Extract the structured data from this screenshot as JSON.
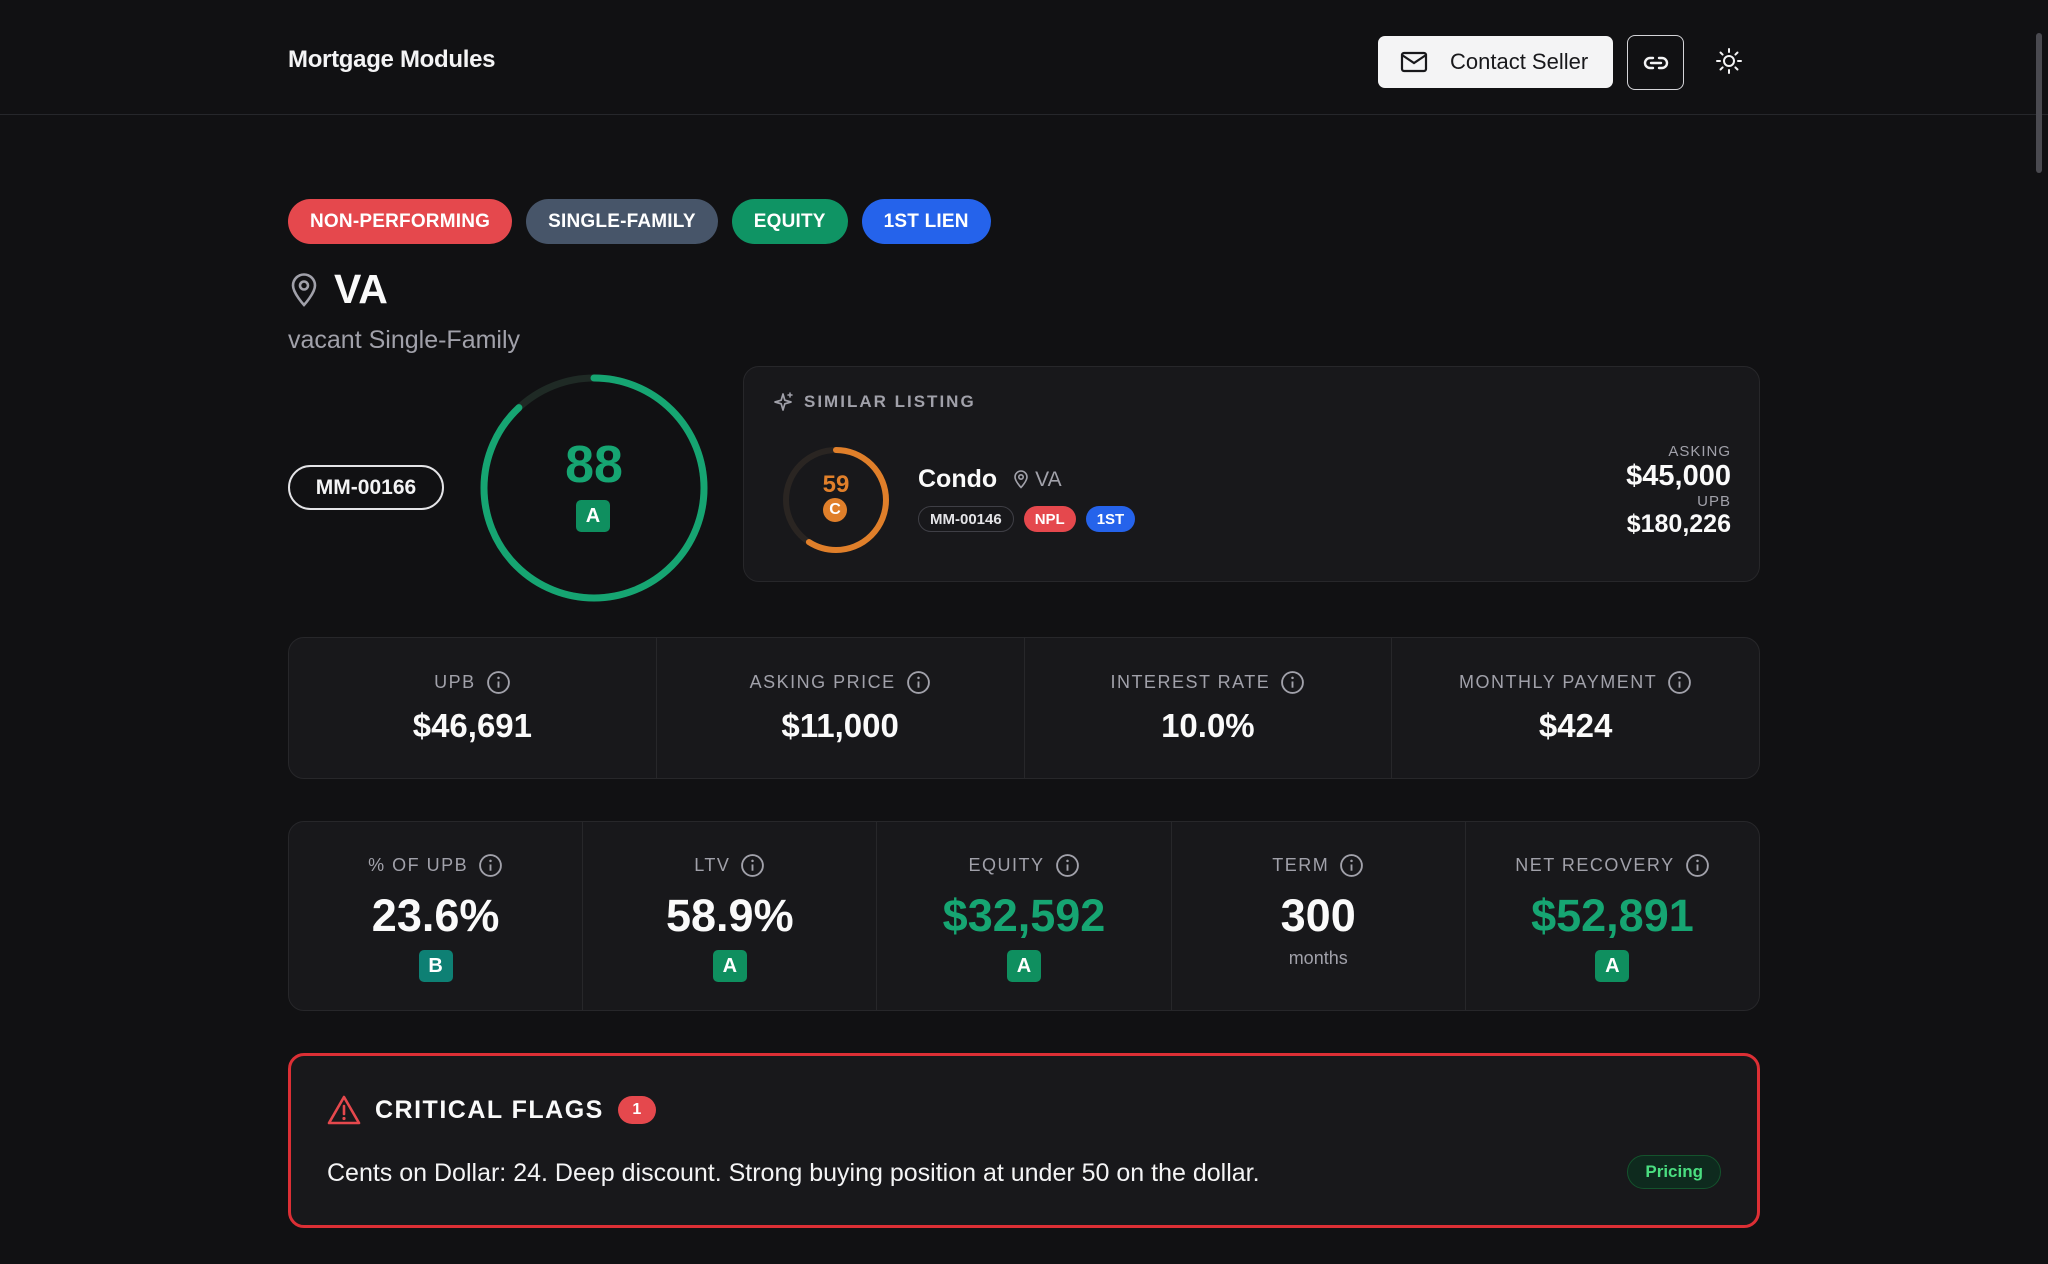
{
  "app": {
    "brand": "Mortgage Modules"
  },
  "header": {
    "contact_label": "Contact Seller"
  },
  "tags": [
    "NON-PERFORMING",
    "SINGLE-FAMILY",
    "EQUITY",
    "1ST LIEN"
  ],
  "listing": {
    "state": "VA",
    "subtitle": "vacant Single-Family",
    "id": "MM-00166",
    "score": "88",
    "score_value": 0.88,
    "grade": "A"
  },
  "similar": {
    "heading": "SIMILAR LISTING",
    "score": "59",
    "score_value": 0.59,
    "grade": "C",
    "type": "Condo",
    "location": "VA",
    "id": "MM-00146",
    "badges": [
      "NPL",
      "1ST"
    ],
    "asking_label": "ASKING",
    "asking_value": "$45,000",
    "upb_label": "UPB",
    "upb_value": "$180,226"
  },
  "metrics_primary": [
    {
      "label": "UPB",
      "value": "$46,691"
    },
    {
      "label": "ASKING PRICE",
      "value": "$11,000"
    },
    {
      "label": "INTEREST RATE",
      "value": "10.0%"
    },
    {
      "label": "MONTHLY PAYMENT",
      "value": "$424"
    }
  ],
  "metrics_secondary": [
    {
      "label": "% OF UPB",
      "value": "23.6%",
      "grade": "B"
    },
    {
      "label": "LTV",
      "value": "58.9%",
      "grade": "A"
    },
    {
      "label": "EQUITY",
      "value": "$32,592",
      "grade": "A"
    },
    {
      "label": "TERM",
      "value": "300",
      "sub": "months"
    },
    {
      "label": "NET RECOVERY",
      "value": "$52,891",
      "grade": "A"
    }
  ],
  "flags": {
    "title": "CRITICAL FLAGS",
    "count": "1",
    "text": "Cents on Dollar: 24. Deep discount. Strong buying position at under 50 on the dollar.",
    "tag": "Pricing"
  },
  "colors": {
    "score_green": "#16a572",
    "score_orange": "#e07f2a",
    "critical_red": "#dc2f35"
  },
  "icons": [
    "envelope-icon",
    "link-icon",
    "sun-icon",
    "map-pin-icon",
    "sparkle-icon",
    "info-icon",
    "alert-triangle-icon"
  ]
}
